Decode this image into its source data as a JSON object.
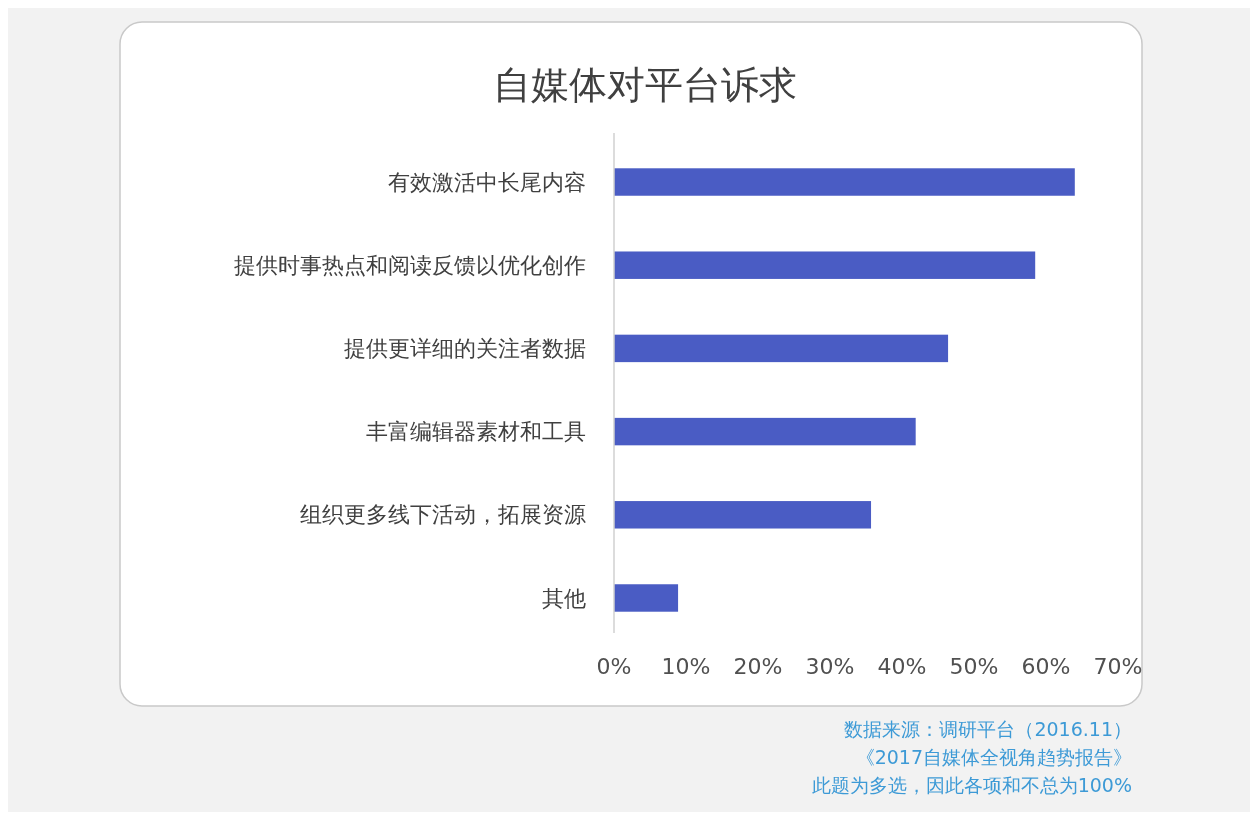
{
  "chart_data": {
    "type": "bar",
    "orientation": "horizontal",
    "title": "自媒体对平台诉求",
    "categories": [
      "有效激活中长尾内容",
      "提供时事热点和阅读反馈以优化创作",
      "提供更详细的关注者数据",
      "丰富编辑器素材和工具",
      "组织更多线下活动，拓展资源",
      "其他"
    ],
    "values": [
      64,
      58.5,
      46.4,
      41.9,
      35.7,
      8.9
    ],
    "color": "#4a5cc4",
    "xlim": [
      0,
      70
    ],
    "xticks": [
      {
        "value": 0,
        "label": "0%"
      },
      {
        "value": 10,
        "label": "10%"
      },
      {
        "value": 20,
        "label": "20%"
      },
      {
        "value": 30,
        "label": "30%"
      },
      {
        "value": 40,
        "label": "40%"
      },
      {
        "value": 50,
        "label": "50%"
      },
      {
        "value": 60,
        "label": "60%"
      },
      {
        "value": 70,
        "label": "70%"
      }
    ],
    "grid": false,
    "annotations": [
      "数据来源：调研平台（2016.11）",
      "《2017自媒体全视角趋势报告》",
      "此题为多选，因此各项和不总为100%"
    ]
  }
}
